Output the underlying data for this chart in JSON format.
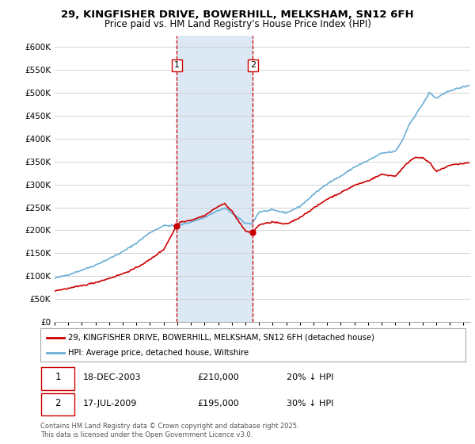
{
  "title_line1": "29, KINGFISHER DRIVE, BOWERHILL, MELKSHAM, SN12 6FH",
  "title_line2": "Price paid vs. HM Land Registry's House Price Index (HPI)",
  "ylim": [
    0,
    625000
  ],
  "yticks": [
    0,
    50000,
    100000,
    150000,
    200000,
    250000,
    300000,
    350000,
    400000,
    450000,
    500000,
    550000,
    600000
  ],
  "ytick_labels": [
    "£0",
    "£50K",
    "£100K",
    "£150K",
    "£200K",
    "£250K",
    "£300K",
    "£350K",
    "£400K",
    "£450K",
    "£500K",
    "£550K",
    "£600K"
  ],
  "xlim_start": 1995.0,
  "xlim_end": 2025.5,
  "transaction1_x": 2003.96,
  "transaction1_y": 210000,
  "transaction2_x": 2009.54,
  "transaction2_y": 195000,
  "vline1_x": 2003.96,
  "vline2_x": 2009.54,
  "shade_color": "#dce9f5",
  "vline_color": "#cc0000",
  "red_line_color": "#cc0000",
  "blue_line_color": "#6baed6",
  "legend_label1": "29, KINGFISHER DRIVE, BOWERHILL, MELKSHAM, SN12 6FH (detached house)",
  "legend_label2": "HPI: Average price, detached house, Wiltshire",
  "table_row1": [
    "1",
    "18-DEC-2003",
    "£210,000",
    "20% ↓ HPI"
  ],
  "table_row2": [
    "2",
    "17-JUL-2009",
    "£195,000",
    "30% ↓ HPI"
  ],
  "footer": "Contains HM Land Registry data © Crown copyright and database right 2025.\nThis data is licensed under the Open Government Licence v3.0.",
  "background_color": "#ffffff",
  "grid_color": "#cccccc",
  "blue_key_x": [
    1995,
    1996,
    1997,
    1998,
    1999,
    2000,
    2001,
    2002,
    2003,
    2004,
    2005,
    2006,
    2007,
    2007.5,
    2008,
    2009,
    2009.5,
    2010,
    2011,
    2012,
    2013,
    2014,
    2015,
    2016,
    2017,
    2018,
    2019,
    2020,
    2020.5,
    2021,
    2022,
    2022.5,
    2023,
    2024,
    2025.3
  ],
  "blue_key_y": [
    95000,
    103000,
    113000,
    124000,
    138000,
    153000,
    172000,
    195000,
    210000,
    210000,
    218000,
    228000,
    243000,
    248000,
    238000,
    215000,
    215000,
    240000,
    244000,
    238000,
    252000,
    278000,
    302000,
    318000,
    338000,
    352000,
    368000,
    372000,
    395000,
    430000,
    475000,
    500000,
    488000,
    505000,
    515000
  ],
  "red_key_x": [
    1995,
    1996,
    1997,
    1998,
    1999,
    2000,
    2001,
    2002,
    2003,
    2003.96,
    2004.2,
    2005,
    2006,
    2007,
    2007.5,
    2008,
    2009,
    2009.54,
    2010,
    2011,
    2012,
    2013,
    2014,
    2015,
    2016,
    2017,
    2018,
    2019,
    2020,
    2021,
    2021.5,
    2022,
    2022.5,
    2023,
    2024,
    2025.3
  ],
  "red_key_y": [
    68000,
    73000,
    79000,
    86000,
    95000,
    105000,
    118000,
    136000,
    158000,
    210000,
    218000,
    222000,
    232000,
    252000,
    258000,
    242000,
    198000,
    195000,
    212000,
    218000,
    213000,
    228000,
    248000,
    268000,
    282000,
    298000,
    308000,
    322000,
    318000,
    350000,
    360000,
    358000,
    348000,
    328000,
    342000,
    347000
  ]
}
